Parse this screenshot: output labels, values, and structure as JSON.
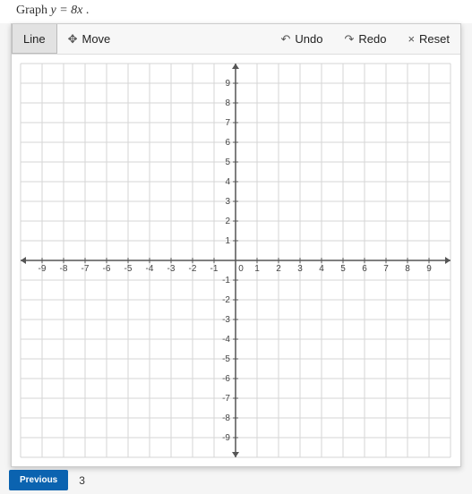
{
  "prompt": {
    "text_prefix": "Graph ",
    "equation": "y = 8x",
    "text_suffix": " ."
  },
  "toolbar": {
    "line_label": "Line",
    "move_label": "Move",
    "undo_label": "Undo",
    "redo_label": "Redo",
    "reset_label": "Reset"
  },
  "graph": {
    "type": "cartesian-grid",
    "xlim": [
      -10,
      10
    ],
    "ylim": [
      -10,
      10
    ],
    "xtick_step": 1,
    "ytick_step": 1,
    "xtick_labels": [
      -9,
      -8,
      -7,
      -6,
      -5,
      -4,
      -3,
      -2,
      -1,
      0,
      1,
      2,
      3,
      4,
      5,
      6,
      7,
      8,
      9
    ],
    "ytick_labels": [
      -9,
      -8,
      -7,
      -6,
      -5,
      -4,
      -3,
      -2,
      -1,
      1,
      2,
      3,
      4,
      5,
      6,
      7,
      8,
      9
    ],
    "grid_color": "#d6d6d6",
    "axis_color": "#555555",
    "background_color": "#ffffff",
    "label_fontsize": 10,
    "label_color": "#444444",
    "tick_length": 3,
    "arrowheads": true
  },
  "footer": {
    "previous_label": "Previous",
    "page_number": "3"
  },
  "colors": {
    "primary_button": "#0b63b0",
    "toolbar_bg": "#f7f7f7",
    "active_tool_bg": "#e2e2e2"
  }
}
